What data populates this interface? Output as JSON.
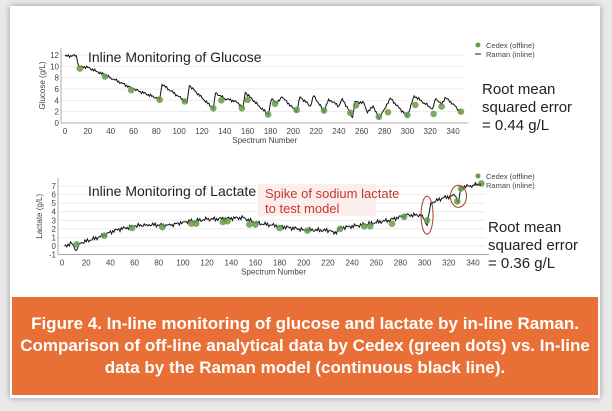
{
  "caption": "Figure 4. In-line monitoring of glucose and lactate by in-line Raman. Comparison of off-line analytical data by Cedex (green dots) vs. In-line data by the Raman model (continuous black line).",
  "colors": {
    "cedex": "#6a9a4a",
    "raman": "#111111",
    "annotation": "#c0392b",
    "caption_bg": "#e86f35"
  },
  "chart_data": [
    {
      "type": "line",
      "title": "Inline Monitoring of Glucose",
      "xlabel": "Spectrum Number",
      "ylabel": "Glucose (g/L)",
      "xlim": [
        0,
        350
      ],
      "ylim": [
        0,
        12.5
      ],
      "xticks": [
        0,
        20,
        40,
        60,
        80,
        100,
        120,
        140,
        160,
        180,
        200,
        220,
        240,
        260,
        280,
        300,
        320,
        340
      ],
      "yticks": [
        0,
        2,
        4,
        6,
        8,
        10,
        12
      ],
      "grid": "horizontal",
      "legend": "top-right",
      "metric": [
        "Root mean",
        "squared error",
        "= 0.44 g/L"
      ],
      "series": [
        {
          "name": "Cedex (offline)",
          "kind": "scatter",
          "points": [
            [
              13,
              9.6
            ],
            [
              35,
              8.2
            ],
            [
              58,
              5.8
            ],
            [
              83,
              4.1
            ],
            [
              105,
              3.8
            ],
            [
              130,
              2.6
            ],
            [
              137,
              4
            ],
            [
              155,
              2.6
            ],
            [
              160,
              4.1
            ],
            [
              178,
              1.5
            ],
            [
              184,
              3.4
            ],
            [
              203,
              2.3
            ],
            [
              227,
              2.2
            ],
            [
              250,
              1.8
            ],
            [
              255,
              3.1
            ],
            [
              275,
              1.1
            ],
            [
              283,
              1.9
            ],
            [
              300,
              1.4
            ],
            [
              307,
              3.2
            ],
            [
              323,
              1.6
            ],
            [
              330,
              2.9
            ],
            [
              347,
              2
            ]
          ]
        },
        {
          "name": "Raman (inline)",
          "kind": "line",
          "points": [
            [
              0,
              11.8
            ],
            [
              10,
              11.9
            ],
            [
              12,
              10
            ],
            [
              20,
              9.8
            ],
            [
              40,
              8
            ],
            [
              60,
              6
            ],
            [
              83,
              4.2
            ],
            [
              85,
              6.8
            ],
            [
              107,
              3.6
            ],
            [
              109,
              6.6
            ],
            [
              130,
              2.5
            ],
            [
              132,
              5.3
            ],
            [
              140,
              4.3
            ],
            [
              150,
              3.8
            ],
            [
              156,
              2.7
            ],
            [
              158,
              5.4
            ],
            [
              170,
              3
            ],
            [
              178,
              1.5
            ],
            [
              181,
              4.2
            ],
            [
              186,
              3.5
            ],
            [
              190,
              4.6
            ],
            [
              203,
              2
            ],
            [
              206,
              4.6
            ],
            [
              215,
              3
            ],
            [
              218,
              4.8
            ],
            [
              227,
              2
            ],
            [
              231,
              4.2
            ],
            [
              240,
              3
            ],
            [
              243,
              4.3
            ],
            [
              252,
              1
            ],
            [
              254,
              3.8
            ],
            [
              262,
              3.5
            ],
            [
              265,
              1.8
            ],
            [
              270,
              3
            ],
            [
              275,
              0.8
            ],
            [
              280,
              2.5
            ],
            [
              285,
              4.4
            ],
            [
              293,
              2.6
            ],
            [
              300,
              1.2
            ],
            [
              306,
              4.8
            ],
            [
              315,
              3.5
            ],
            [
              322,
              2.5
            ],
            [
              325,
              4.3
            ],
            [
              330,
              3.2
            ],
            [
              333,
              4.5
            ],
            [
              340,
              3.4
            ],
            [
              347,
              1.8
            ]
          ]
        }
      ]
    },
    {
      "type": "line",
      "title": "Inline Monitoring of Lactate",
      "xlabel": "Spectrum Number",
      "ylabel": "Lactate (g/L)",
      "xlim": [
        0,
        350
      ],
      "ylim": [
        -1,
        7.5
      ],
      "xticks": [
        0,
        20,
        40,
        60,
        80,
        100,
        120,
        140,
        160,
        180,
        200,
        220,
        240,
        260,
        280,
        300,
        320,
        340
      ],
      "yticks": [
        -1,
        0,
        1,
        2,
        3,
        4,
        5,
        6,
        7
      ],
      "grid": "horizontal",
      "legend": "top-right",
      "annotation": [
        "Spike of sodium lactate",
        "to test model"
      ],
      "metric": [
        "Root mean",
        "squared error",
        "= 0.36 g/L"
      ],
      "series": [
        {
          "name": "Cedex (offline)",
          "kind": "scatter",
          "points": [
            [
              12,
              0.2
            ],
            [
              35,
              1.2
            ],
            [
              58,
              2.1
            ],
            [
              83,
              2.2
            ],
            [
              107,
              2.6
            ],
            [
              111,
              2.6
            ],
            [
              133,
              2.8
            ],
            [
              137,
              2.9
            ],
            [
              155,
              2.5
            ],
            [
              160,
              2.5
            ],
            [
              180,
              2.1
            ],
            [
              203,
              1.8
            ],
            [
              230,
              2
            ],
            [
              250,
              2.3
            ],
            [
              255,
              2.3
            ],
            [
              273,
              2.6
            ],
            [
              283,
              3.4
            ],
            [
              302,
              3
            ],
            [
              327,
              5.2
            ],
            [
              330,
              6.7
            ],
            [
              347,
              7.3
            ]
          ]
        },
        {
          "name": "Raman (inline)",
          "kind": "line",
          "points": [
            [
              2,
              0
            ],
            [
              8,
              0.3
            ],
            [
              12,
              -0.5
            ],
            [
              14,
              0.3
            ],
            [
              30,
              1
            ],
            [
              45,
              1.9
            ],
            [
              60,
              2.3
            ],
            [
              70,
              2.5
            ],
            [
              90,
              2.4
            ],
            [
              100,
              2.8
            ],
            [
              120,
              3.1
            ],
            [
              150,
              3.3
            ],
            [
              160,
              2.7
            ],
            [
              180,
              2.3
            ],
            [
              200,
              1.9
            ],
            [
              222,
              1.8
            ],
            [
              225,
              1.4
            ],
            [
              230,
              2.1
            ],
            [
              250,
              2.5
            ],
            [
              270,
              3
            ],
            [
              285,
              3.6
            ],
            [
              298,
              3.6
            ],
            [
              302,
              2.4
            ],
            [
              305,
              5
            ],
            [
              315,
              5.6
            ],
            [
              325,
              5.9
            ],
            [
              328,
              5.1
            ],
            [
              330,
              6.8
            ],
            [
              340,
              7.1
            ],
            [
              347,
              7.4
            ]
          ]
        }
      ]
    }
  ]
}
